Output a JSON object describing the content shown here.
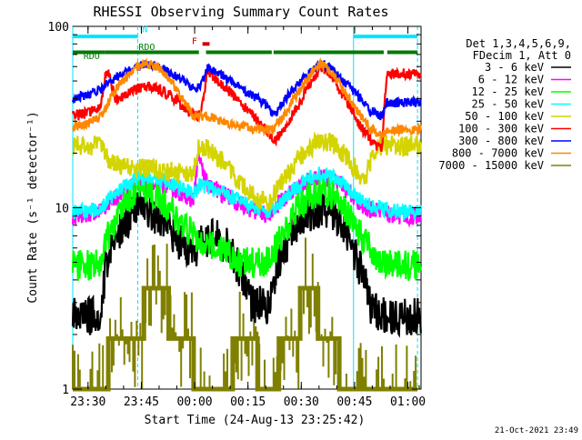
{
  "chart_data": {
    "type": "line",
    "title": "RHESSI Observing Summary Count Rates",
    "xlabel": "Start Time (24-Aug-13 23:25:42)",
    "ylabel": "Count Rate (s⁻¹ detector⁻¹)",
    "y_scale": "log",
    "ylim": [
      1,
      100
    ],
    "xlim_minutes_after_23_25_42": [
      0,
      98
    ],
    "grid": false,
    "legend_position": "right",
    "footer_timestamp": "21-Oct-2021 23:49",
    "legend_header": [
      "Det 1,3,4,5,6,9,",
      "FDecim 1, Att 0"
    ],
    "x_ticks": [
      {
        "label": "23:30",
        "t": 4.3
      },
      {
        "label": "23:45",
        "t": 19.3
      },
      {
        "label": "00:00",
        "t": 34.3
      },
      {
        "label": "00:15",
        "t": 49.3
      },
      {
        "label": "00:30",
        "t": 64.3
      },
      {
        "label": "00:45",
        "t": 79.3
      },
      {
        "label": "01:00",
        "t": 94.3
      }
    ],
    "y_ticks": [
      {
        "label": "1",
        "v": 1
      },
      {
        "label": "10",
        "v": 10
      },
      {
        "label": "100",
        "v": 100
      }
    ],
    "flag_bars": [
      {
        "label": "N",
        "color": "#00e5ff",
        "level": 88,
        "segments": [
          [
            0,
            18.3
          ],
          [
            79,
            97
          ]
        ]
      },
      {
        "label": "F",
        "color": "#cc0000",
        "level": 80,
        "segments": [
          [
            36.5,
            38.5
          ]
        ]
      },
      {
        "label": "RDO",
        "color": "#007a00",
        "level": 72,
        "segments": [
          [
            0,
            9
          ],
          [
            9,
            35.5
          ],
          [
            37.5,
            56
          ],
          [
            56.5,
            87.5
          ],
          [
            88.5,
            97
          ]
        ]
      }
    ],
    "flag_text": [
      {
        "text": "N",
        "color": "#00e5ff",
        "t": 19.5,
        "v": 93
      },
      {
        "text": "F",
        "color": "#cc0000",
        "t": 33.5,
        "v": 80
      },
      {
        "text": "RDO",
        "color": "#007a00",
        "t": 18.5,
        "v": 74
      },
      {
        "text": "RDO",
        "color": "#007a00",
        "t": 3.0,
        "v": 66
      }
    ],
    "vertical_markers": [
      {
        "t": 0,
        "color": "#00e5ff",
        "style": "solid"
      },
      {
        "t": 18.3,
        "color": "#00e5ff",
        "style": "dashed"
      },
      {
        "t": 79,
        "color": "#00e5ff",
        "style": "solid"
      },
      {
        "t": 97,
        "color": "#00e5ff",
        "style": "dashed"
      }
    ],
    "series": [
      {
        "name": "3 - 6 keV",
        "color": "#000000",
        "x": [
          0,
          4,
          8,
          10,
          15,
          18,
          22,
          26,
          30,
          34,
          36,
          40,
          44,
          50,
          55,
          58,
          62,
          66,
          70,
          73,
          76,
          80,
          84,
          88,
          92,
          97
        ],
        "y": [
          2.6,
          2.5,
          2.6,
          5.5,
          8.3,
          10.5,
          9.5,
          8.0,
          6.5,
          5.5,
          6.5,
          6.8,
          6.0,
          3.0,
          2.8,
          5.0,
          7.5,
          9.3,
          10.0,
          9.5,
          8.0,
          5.0,
          2.8,
          2.6,
          2.5,
          2.5
        ]
      },
      {
        "name": "6 - 12 keV",
        "color": "#ff00ff",
        "x": [
          0,
          4,
          8,
          10,
          14,
          18,
          22,
          26,
          30,
          34,
          35.5,
          36.5,
          38,
          42,
          47,
          52,
          55,
          58,
          62,
          66,
          70,
          74,
          78,
          82,
          86,
          92,
          97
        ],
        "y": [
          9.0,
          9.2,
          9.5,
          10.5,
          12.0,
          13.5,
          14.0,
          13.2,
          12.0,
          11.0,
          20.0,
          15.5,
          13.5,
          12.0,
          10.5,
          9.5,
          9.0,
          10.5,
          12.5,
          14.0,
          15.0,
          14.0,
          12.0,
          10.0,
          9.5,
          9.0,
          9.0
        ]
      },
      {
        "name": "12 - 25 keV",
        "color": "#00ff00",
        "x": [
          0,
          4,
          8,
          10,
          14,
          18,
          22,
          26,
          30,
          34,
          38,
          42,
          47,
          52,
          55,
          58,
          62,
          66,
          70,
          74,
          78,
          82,
          86,
          92,
          97
        ],
        "y": [
          4.8,
          4.8,
          5.0,
          7.0,
          10.0,
          12.5,
          12.5,
          10.5,
          8.5,
          7.0,
          6.5,
          6.0,
          5.0,
          5.0,
          5.0,
          6.5,
          9.0,
          11.5,
          12.5,
          11.5,
          9.0,
          6.5,
          5.0,
          4.8,
          4.8
        ]
      },
      {
        "name": "25 - 50 keV",
        "color": "#00ffff",
        "x": [
          0,
          4,
          8,
          10,
          14,
          18,
          22,
          26,
          30,
          34,
          36,
          38,
          42,
          47,
          52,
          55,
          58,
          62,
          66,
          70,
          74,
          78,
          82,
          86,
          92,
          97
        ],
        "y": [
          9.5,
          9.5,
          10.0,
          11.0,
          13.0,
          14.5,
          15.0,
          14.0,
          13.0,
          12.0,
          13.5,
          13.0,
          12.0,
          11.0,
          10.0,
          9.5,
          10.5,
          12.5,
          14.5,
          15.5,
          14.5,
          12.5,
          10.5,
          10.0,
          9.5,
          9.5
        ]
      },
      {
        "name": "50 - 100 keV",
        "color": "#d4d400",
        "x": [
          0,
          4,
          8,
          10,
          14,
          18,
          22,
          26,
          30,
          34,
          35.5,
          38,
          42,
          47,
          52,
          55,
          58,
          62,
          66,
          70,
          74,
          78,
          82,
          86,
          92,
          97
        ],
        "y": [
          22.0,
          22.0,
          22.0,
          18.0,
          17.0,
          16.5,
          16.5,
          16.0,
          15.5,
          15.0,
          22.0,
          21.0,
          18.0,
          14.0,
          11.0,
          10.5,
          13.0,
          17.0,
          21.0,
          24.0,
          22.0,
          18.0,
          14.0,
          22.0,
          22.0,
          22.0
        ]
      },
      {
        "name": "100 - 300 keV",
        "color": "#ff0000",
        "x": [
          0,
          4,
          8,
          9.5,
          12,
          15,
          18,
          21,
          24,
          27,
          30,
          34,
          36,
          38,
          42,
          47,
          52,
          55,
          56.5,
          60,
          64,
          68,
          70,
          72,
          76,
          80,
          84,
          87,
          88.5,
          92,
          97
        ],
        "y": [
          32,
          33,
          36,
          58,
          40,
          42,
          45,
          47,
          45,
          42,
          38,
          32,
          32,
          56,
          48,
          38,
          30,
          26,
          23,
          28,
          38,
          52,
          60,
          55,
          42,
          30,
          23,
          21,
          55,
          55,
          55
        ]
      },
      {
        "name": "300 - 800 keV",
        "color": "#0000ff",
        "x": [
          0,
          4,
          8,
          9.5,
          12,
          15,
          18,
          21,
          24,
          27,
          30,
          34,
          36,
          38,
          42,
          47,
          52,
          55,
          56.5,
          60,
          64,
          68,
          70,
          72,
          76,
          80,
          84,
          87,
          88.5,
          92,
          97
        ],
        "y": [
          40,
          42,
          45,
          48,
          52,
          56,
          60,
          62,
          60,
          56,
          52,
          46,
          46,
          60,
          54,
          46,
          40,
          36,
          32,
          40,
          50,
          58,
          62,
          60,
          50,
          42,
          34,
          32,
          38,
          38,
          38
        ]
      },
      {
        "name": "800 - 7000 keV",
        "color": "#ff8800",
        "x": [
          0,
          4,
          8,
          9.5,
          12,
          15,
          18,
          21,
          24,
          27,
          30,
          34,
          36,
          38,
          42,
          47,
          52,
          55,
          56.5,
          60,
          64,
          68,
          70,
          72,
          76,
          80,
          84,
          87,
          88.5,
          92,
          97
        ],
        "y": [
          28,
          29,
          32,
          36,
          45,
          52,
          60,
          62,
          60,
          52,
          42,
          32,
          32,
          32,
          30,
          28,
          27,
          27,
          27,
          33,
          45,
          58,
          62,
          58,
          45,
          34,
          27,
          25,
          27,
          27,
          27
        ]
      }
    ],
    "steps_series": [
      {
        "name": "7000 - 15000 keV",
        "color": "#808000",
        "x": [
          0,
          10,
          10,
          20,
          20,
          27,
          27,
          34,
          34,
          45,
          45,
          52,
          52,
          58,
          58,
          64,
          64,
          69,
          69,
          75,
          75,
          82,
          82,
          97
        ],
        "y": [
          1.0,
          1.0,
          1.9,
          1.9,
          3.6,
          3.6,
          1.9,
          1.9,
          1.0,
          1.0,
          1.9,
          1.9,
          1.0,
          1.0,
          1.9,
          1.9,
          3.6,
          3.6,
          1.9,
          1.9,
          1.0,
          1.0,
          1.0,
          1.0
        ]
      }
    ]
  }
}
